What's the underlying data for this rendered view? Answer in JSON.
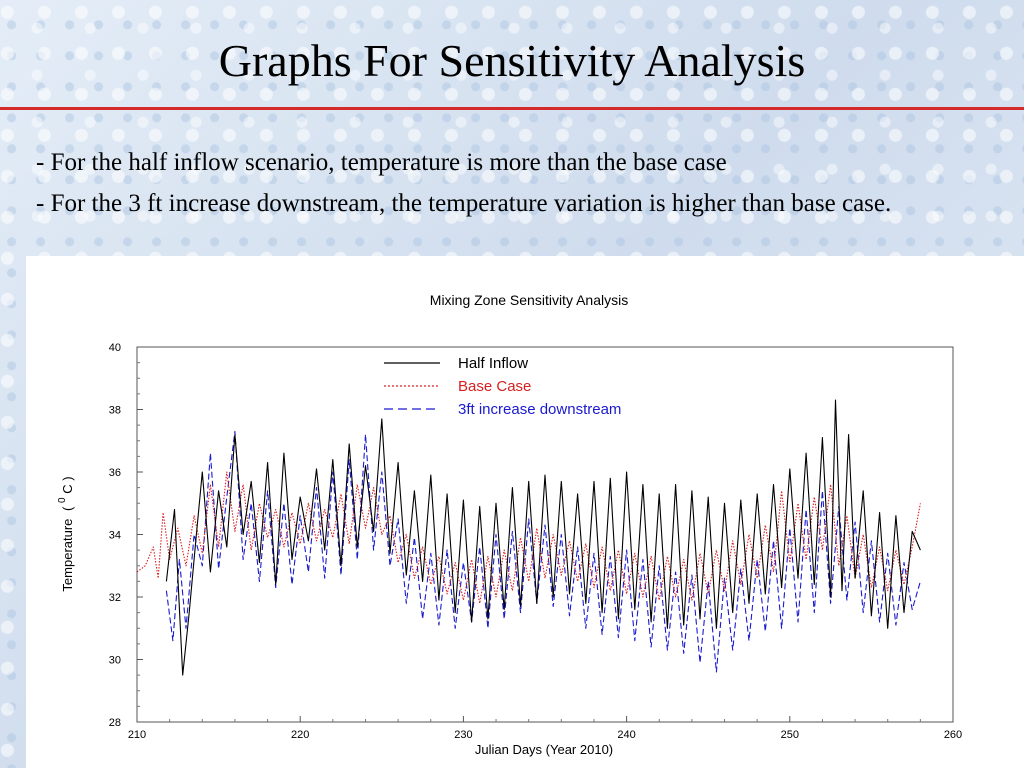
{
  "slide": {
    "title": "Graphs For Sensitivity Analysis",
    "bullets": [
      "- For the half inflow scenario, temperature is more than the base case",
      "- For the 3 ft increase downstream, the temperature variation is higher than base case."
    ]
  },
  "colors": {
    "title_rule": "#d42a2a",
    "half_inflow": "#000000",
    "base_case": "#d62020",
    "increase_3ft": "#1a1ad0"
  },
  "chart_data": {
    "type": "line",
    "title": "Mixing Zone Sensitivity Analysis",
    "xlabel": "Julian Days (Year 2010)",
    "ylabel": "Temperature",
    "ylabel_sup": "0",
    "ylabel_unit": "C",
    "xlim": [
      210,
      260
    ],
    "ylim": [
      28,
      40
    ],
    "x_ticks": [
      210,
      220,
      230,
      240,
      250,
      260
    ],
    "y_ticks": [
      28,
      30,
      32,
      34,
      36,
      38,
      40
    ],
    "grid": false,
    "legend_position": "top-center",
    "series": [
      {
        "name": "Half Inflow",
        "style": "solid",
        "color": "#000000",
        "points": [
          [
            211.8,
            32.5
          ],
          [
            212.3,
            34.8
          ],
          [
            212.8,
            29.5
          ],
          [
            213.2,
            31.5
          ],
          [
            213.6,
            33.8
          ],
          [
            214.0,
            36.0
          ],
          [
            214.5,
            32.8
          ],
          [
            215.0,
            35.4
          ],
          [
            215.5,
            33.6
          ],
          [
            216.0,
            37.2
          ],
          [
            216.5,
            34.0
          ],
          [
            217.0,
            35.7
          ],
          [
            217.5,
            33.1
          ],
          [
            218.0,
            36.3
          ],
          [
            218.5,
            32.4
          ],
          [
            219.0,
            36.6
          ],
          [
            219.5,
            33.2
          ],
          [
            220.0,
            35.2
          ],
          [
            220.5,
            33.8
          ],
          [
            221.0,
            36.1
          ],
          [
            221.5,
            33.5
          ],
          [
            222.0,
            36.4
          ],
          [
            222.5,
            33.0
          ],
          [
            223.0,
            36.9
          ],
          [
            223.5,
            33.6
          ],
          [
            224.0,
            36.2
          ],
          [
            224.5,
            34.1
          ],
          [
            225.0,
            37.7
          ],
          [
            225.5,
            33.4
          ],
          [
            226.0,
            36.3
          ],
          [
            226.5,
            32.7
          ],
          [
            227.0,
            35.4
          ],
          [
            227.5,
            32.5
          ],
          [
            228.0,
            35.9
          ],
          [
            228.5,
            31.9
          ],
          [
            229.0,
            35.3
          ],
          [
            229.5,
            31.5
          ],
          [
            230.0,
            35.1
          ],
          [
            230.5,
            31.2
          ],
          [
            231.0,
            34.9
          ],
          [
            231.5,
            31.3
          ],
          [
            232.0,
            35.0
          ],
          [
            232.5,
            31.6
          ],
          [
            233.0,
            35.5
          ],
          [
            233.5,
            31.7
          ],
          [
            234.0,
            35.7
          ],
          [
            234.5,
            31.8
          ],
          [
            235.0,
            35.9
          ],
          [
            235.5,
            32.0
          ],
          [
            236.0,
            35.7
          ],
          [
            236.5,
            32.1
          ],
          [
            237.0,
            35.3
          ],
          [
            237.5,
            31.8
          ],
          [
            238.0,
            35.7
          ],
          [
            238.5,
            31.5
          ],
          [
            239.0,
            35.8
          ],
          [
            239.5,
            31.3
          ],
          [
            240.0,
            36.0
          ],
          [
            240.5,
            31.6
          ],
          [
            241.0,
            35.6
          ],
          [
            241.5,
            31.2
          ],
          [
            242.0,
            35.3
          ],
          [
            242.5,
            31.0
          ],
          [
            243.0,
            35.6
          ],
          [
            243.5,
            31.1
          ],
          [
            244.0,
            35.4
          ],
          [
            244.5,
            31.3
          ],
          [
            245.0,
            35.2
          ],
          [
            245.5,
            31.0
          ],
          [
            246.0,
            35.0
          ],
          [
            246.5,
            31.5
          ],
          [
            247.0,
            35.1
          ],
          [
            247.5,
            31.8
          ],
          [
            248.0,
            35.3
          ],
          [
            248.5,
            32.1
          ],
          [
            249.0,
            35.6
          ],
          [
            249.5,
            32.3
          ],
          [
            250.0,
            36.1
          ],
          [
            250.5,
            32.6
          ],
          [
            251.0,
            36.6
          ],
          [
            251.5,
            32.4
          ],
          [
            252.0,
            37.1
          ],
          [
            252.5,
            32.0
          ],
          [
            252.8,
            38.3
          ],
          [
            253.2,
            32.2
          ],
          [
            253.6,
            37.2
          ],
          [
            254.0,
            32.6
          ],
          [
            254.5,
            35.4
          ],
          [
            255.0,
            31.4
          ],
          [
            255.5,
            34.7
          ],
          [
            256.0,
            31.0
          ],
          [
            256.5,
            34.6
          ],
          [
            257.0,
            31.5
          ],
          [
            257.5,
            34.1
          ],
          [
            258.0,
            33.5
          ]
        ]
      },
      {
        "name": "Base Case",
        "style": "dotted",
        "color": "#d62020",
        "points": [
          [
            210.0,
            32.8
          ],
          [
            210.5,
            33.0
          ],
          [
            211.0,
            33.6
          ],
          [
            211.3,
            32.6
          ],
          [
            211.6,
            34.7
          ],
          [
            212.0,
            33.2
          ],
          [
            212.5,
            34.2
          ],
          [
            213.0,
            33.0
          ],
          [
            213.5,
            34.6
          ],
          [
            214.0,
            33.4
          ],
          [
            214.5,
            35.6
          ],
          [
            215.0,
            33.6
          ],
          [
            215.5,
            36.0
          ],
          [
            216.0,
            34.1
          ],
          [
            216.5,
            35.6
          ],
          [
            217.0,
            33.5
          ],
          [
            217.5,
            35.0
          ],
          [
            218.0,
            33.9
          ],
          [
            218.5,
            34.8
          ],
          [
            219.0,
            33.6
          ],
          [
            219.5,
            34.7
          ],
          [
            220.0,
            33.7
          ],
          [
            220.5,
            35.0
          ],
          [
            221.0,
            33.8
          ],
          [
            221.5,
            34.8
          ],
          [
            222.0,
            33.9
          ],
          [
            222.5,
            35.3
          ],
          [
            223.0,
            33.7
          ],
          [
            223.5,
            35.6
          ],
          [
            224.0,
            34.2
          ],
          [
            224.5,
            35.5
          ],
          [
            225.0,
            34.0
          ],
          [
            225.5,
            34.6
          ],
          [
            226.0,
            33.1
          ],
          [
            226.5,
            34.0
          ],
          [
            227.0,
            32.6
          ],
          [
            227.5,
            33.6
          ],
          [
            228.0,
            32.4
          ],
          [
            228.5,
            33.3
          ],
          [
            229.0,
            32.1
          ],
          [
            229.5,
            33.1
          ],
          [
            230.0,
            31.9
          ],
          [
            230.5,
            33.2
          ],
          [
            231.0,
            31.8
          ],
          [
            231.5,
            33.3
          ],
          [
            232.0,
            32.0
          ],
          [
            232.5,
            33.5
          ],
          [
            233.0,
            32.2
          ],
          [
            233.5,
            33.9
          ],
          [
            234.0,
            32.5
          ],
          [
            234.5,
            34.2
          ],
          [
            235.0,
            32.6
          ],
          [
            235.5,
            34.0
          ],
          [
            236.0,
            32.7
          ],
          [
            236.5,
            33.8
          ],
          [
            237.0,
            32.5
          ],
          [
            237.5,
            33.7
          ],
          [
            238.0,
            32.3
          ],
          [
            238.5,
            33.6
          ],
          [
            239.0,
            32.2
          ],
          [
            239.5,
            33.5
          ],
          [
            240.0,
            32.1
          ],
          [
            240.5,
            33.4
          ],
          [
            241.0,
            32.0
          ],
          [
            241.5,
            33.3
          ],
          [
            242.0,
            31.9
          ],
          [
            242.5,
            33.3
          ],
          [
            243.0,
            32.0
          ],
          [
            243.5,
            33.2
          ],
          [
            244.0,
            31.9
          ],
          [
            244.5,
            33.4
          ],
          [
            245.0,
            32.1
          ],
          [
            245.5,
            33.5
          ],
          [
            246.0,
            32.2
          ],
          [
            246.5,
            33.8
          ],
          [
            247.0,
            32.4
          ],
          [
            247.5,
            34.0
          ],
          [
            248.0,
            32.6
          ],
          [
            248.5,
            34.3
          ],
          [
            249.0,
            32.8
          ],
          [
            249.5,
            35.4
          ],
          [
            250.0,
            33.1
          ],
          [
            250.5,
            35.0
          ],
          [
            251.0,
            33.2
          ],
          [
            251.5,
            35.2
          ],
          [
            252.0,
            33.5
          ],
          [
            252.5,
            35.6
          ],
          [
            253.0,
            33.0
          ],
          [
            253.5,
            34.6
          ],
          [
            254.0,
            32.6
          ],
          [
            254.5,
            34.0
          ],
          [
            255.0,
            32.3
          ],
          [
            255.5,
            33.6
          ],
          [
            256.0,
            32.2
          ],
          [
            256.5,
            33.5
          ],
          [
            257.0,
            32.4
          ],
          [
            257.5,
            33.6
          ],
          [
            258.0,
            35.0
          ]
        ]
      },
      {
        "name": "3ft increase downstream",
        "style": "dashed",
        "color": "#1a1ad0",
        "points": [
          [
            211.8,
            32.2
          ],
          [
            212.2,
            30.6
          ],
          [
            212.6,
            33.2
          ],
          [
            213.0,
            31.0
          ],
          [
            213.5,
            34.0
          ],
          [
            214.0,
            33.0
          ],
          [
            214.5,
            36.6
          ],
          [
            215.0,
            32.9
          ],
          [
            215.5,
            35.2
          ],
          [
            216.0,
            37.3
          ],
          [
            216.5,
            33.2
          ],
          [
            217.0,
            35.0
          ],
          [
            217.5,
            32.5
          ],
          [
            218.0,
            35.4
          ],
          [
            218.5,
            32.3
          ],
          [
            219.0,
            35.0
          ],
          [
            219.5,
            32.4
          ],
          [
            220.0,
            34.6
          ],
          [
            220.5,
            32.8
          ],
          [
            221.0,
            35.5
          ],
          [
            221.5,
            32.6
          ],
          [
            222.0,
            36.0
          ],
          [
            222.5,
            32.7
          ],
          [
            223.0,
            36.4
          ],
          [
            223.5,
            33.2
          ],
          [
            224.0,
            37.2
          ],
          [
            224.5,
            33.5
          ],
          [
            225.0,
            36.0
          ],
          [
            225.5,
            33.0
          ],
          [
            226.0,
            34.5
          ],
          [
            226.5,
            31.8
          ],
          [
            227.0,
            33.9
          ],
          [
            227.5,
            31.3
          ],
          [
            228.0,
            33.4
          ],
          [
            228.5,
            31.1
          ],
          [
            229.0,
            33.5
          ],
          [
            229.5,
            31.0
          ],
          [
            230.0,
            33.1
          ],
          [
            230.5,
            31.2
          ],
          [
            231.0,
            33.6
          ],
          [
            231.5,
            31.0
          ],
          [
            232.0,
            34.0
          ],
          [
            232.5,
            31.3
          ],
          [
            233.0,
            34.1
          ],
          [
            233.5,
            31.5
          ],
          [
            234.0,
            34.5
          ],
          [
            234.5,
            31.8
          ],
          [
            235.0,
            34.3
          ],
          [
            235.5,
            31.7
          ],
          [
            236.0,
            34.0
          ],
          [
            236.5,
            31.4
          ],
          [
            237.0,
            33.6
          ],
          [
            237.5,
            31.0
          ],
          [
            238.0,
            33.4
          ],
          [
            238.5,
            30.8
          ],
          [
            239.0,
            33.3
          ],
          [
            239.5,
            30.7
          ],
          [
            240.0,
            33.5
          ],
          [
            240.5,
            30.6
          ],
          [
            241.0,
            33.2
          ],
          [
            241.5,
            30.4
          ],
          [
            242.0,
            33.0
          ],
          [
            242.5,
            30.3
          ],
          [
            243.0,
            32.8
          ],
          [
            243.5,
            30.2
          ],
          [
            244.0,
            32.7
          ],
          [
            244.5,
            29.9
          ],
          [
            245.0,
            32.5
          ],
          [
            245.5,
            29.6
          ],
          [
            246.0,
            32.6
          ],
          [
            246.5,
            30.3
          ],
          [
            247.0,
            32.9
          ],
          [
            247.5,
            30.6
          ],
          [
            248.0,
            33.2
          ],
          [
            248.5,
            30.9
          ],
          [
            249.0,
            33.8
          ],
          [
            249.5,
            31.0
          ],
          [
            250.0,
            34.2
          ],
          [
            250.5,
            31.2
          ],
          [
            251.0,
            34.8
          ],
          [
            251.5,
            31.5
          ],
          [
            252.0,
            35.4
          ],
          [
            252.5,
            31.8
          ],
          [
            253.0,
            34.9
          ],
          [
            253.5,
            31.9
          ],
          [
            254.0,
            34.4
          ],
          [
            254.5,
            31.5
          ],
          [
            255.0,
            33.8
          ],
          [
            255.5,
            31.2
          ],
          [
            256.0,
            33.4
          ],
          [
            256.5,
            31.1
          ],
          [
            257.0,
            33.1
          ],
          [
            257.5,
            31.6
          ],
          [
            258.0,
            32.5
          ]
        ]
      }
    ]
  }
}
